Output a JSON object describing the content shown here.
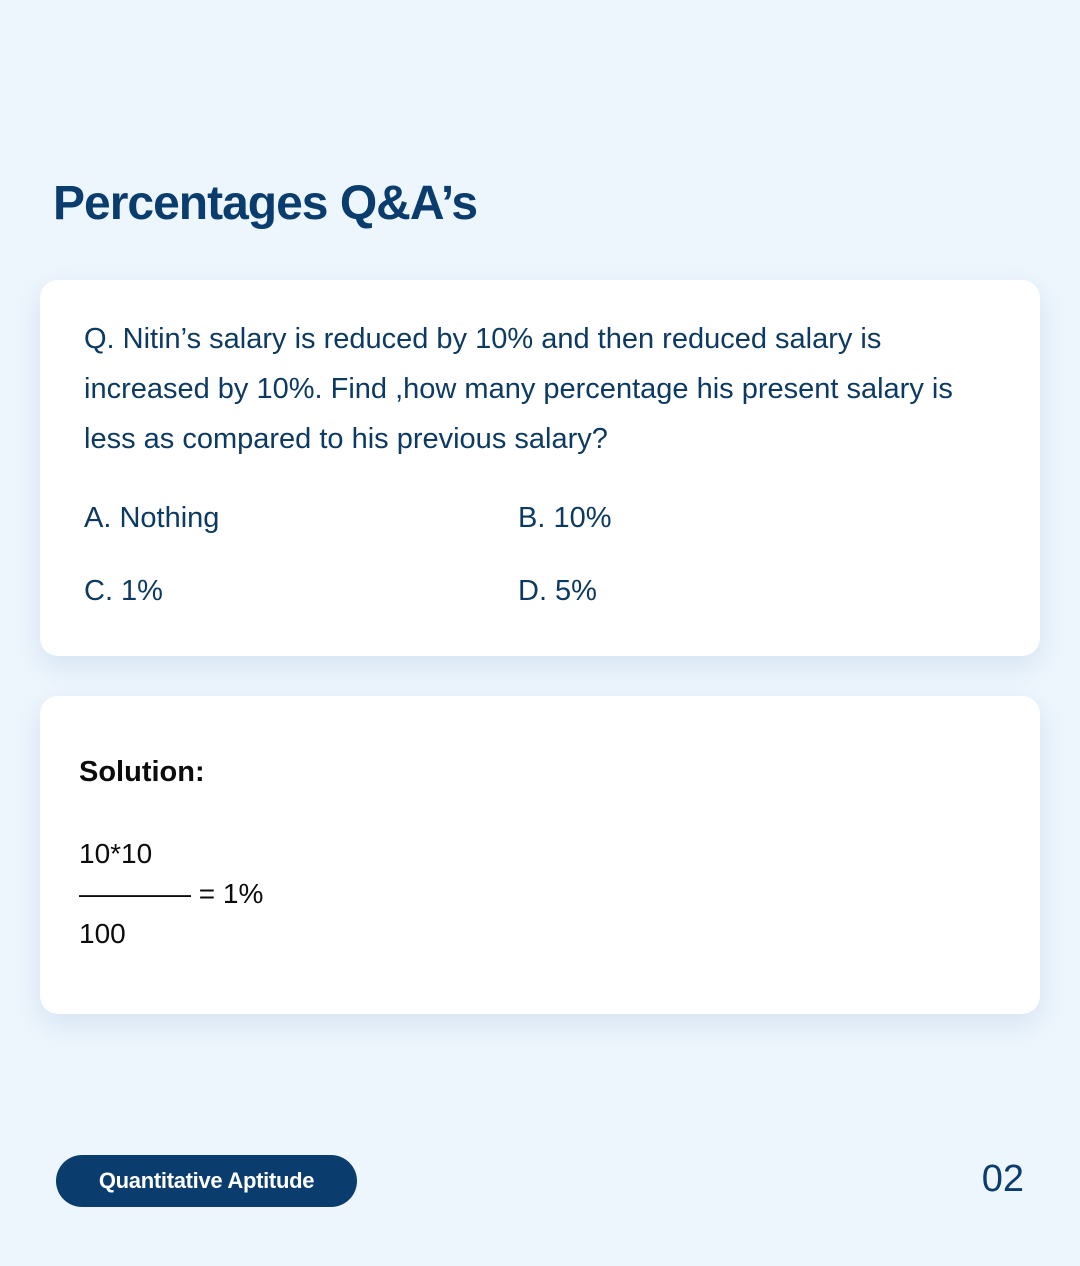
{
  "title": "Percentages Q&A’s",
  "question": {
    "text": "Q. Nitin’s salary is reduced by 10% and then reduced salary is increased by 10%. Find ,how many percentage his present salary is less as compared to his previous salary?",
    "options": [
      "A. Nothing",
      "B. 10%",
      "C. 1%",
      "D. 5%"
    ]
  },
  "solution": {
    "heading": "Solution:",
    "numerator": "10*10",
    "fraction_line": "———— = 1%",
    "denominator": "100"
  },
  "footer": {
    "topic": "Quantitative Aptitude",
    "page": "02"
  }
}
